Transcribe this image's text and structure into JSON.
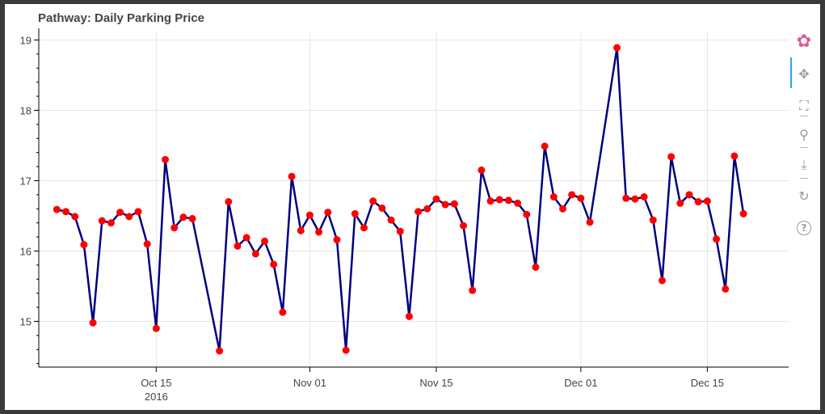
{
  "chart_data": {
    "type": "line",
    "title": "Pathway: Daily Parking Price",
    "xlabel": "",
    "ylabel": "",
    "x_axis": {
      "type": "datetime",
      "range": [
        "2016-10-02",
        "2016-12-24"
      ],
      "ticks": [
        {
          "date": "2016-10-15",
          "label": "Oct 15",
          "sublabel": "2016"
        },
        {
          "date": "2016-11-01",
          "label": "Nov 01",
          "sublabel": ""
        },
        {
          "date": "2016-11-15",
          "label": "Nov 15",
          "sublabel": ""
        },
        {
          "date": "2016-12-01",
          "label": "Dec 01",
          "sublabel": ""
        },
        {
          "date": "2016-12-15",
          "label": "Dec 15",
          "sublabel": ""
        }
      ]
    },
    "y_axis": {
      "range": [
        14.35,
        19.12
      ],
      "ticks": [
        15,
        16,
        17,
        18,
        19
      ]
    },
    "grid": true,
    "legend": "none",
    "line_color": "#000080",
    "marker_color": "#ff0000",
    "series": [
      {
        "points": [
          [
            "2016-10-04",
            16.59
          ],
          [
            "2016-10-05",
            16.56
          ],
          [
            "2016-10-06",
            16.49
          ],
          [
            "2016-10-07",
            16.09
          ],
          [
            "2016-10-08",
            14.98
          ],
          [
            "2016-10-09",
            16.43
          ],
          [
            "2016-10-10",
            16.4
          ],
          [
            "2016-10-11",
            16.55
          ],
          [
            "2016-10-12",
            16.49
          ],
          [
            "2016-10-13",
            16.56
          ],
          [
            "2016-10-14",
            16.1
          ],
          [
            "2016-10-15",
            14.9
          ],
          [
            "2016-10-16",
            17.3
          ],
          [
            "2016-10-17",
            16.33
          ],
          [
            "2016-10-18",
            16.48
          ],
          [
            "2016-10-19",
            16.46
          ],
          [
            "2016-10-22",
            14.58
          ],
          [
            "2016-10-23",
            16.7
          ],
          [
            "2016-10-24",
            16.07
          ],
          [
            "2016-10-25",
            16.19
          ],
          [
            "2016-10-26",
            15.96
          ],
          [
            "2016-10-27",
            16.14
          ],
          [
            "2016-10-28",
            15.81
          ],
          [
            "2016-10-29",
            15.13
          ],
          [
            "2016-10-30",
            17.06
          ],
          [
            "2016-10-31",
            16.29
          ],
          [
            "2016-11-01",
            16.51
          ],
          [
            "2016-11-02",
            16.27
          ],
          [
            "2016-11-03",
            16.55
          ],
          [
            "2016-11-04",
            16.16
          ],
          [
            "2016-11-05",
            14.59
          ],
          [
            "2016-11-06",
            16.53
          ],
          [
            "2016-11-07",
            16.33
          ],
          [
            "2016-11-08",
            16.71
          ],
          [
            "2016-11-09",
            16.61
          ],
          [
            "2016-11-10",
            16.44
          ],
          [
            "2016-11-11",
            16.28
          ],
          [
            "2016-11-12",
            15.07
          ],
          [
            "2016-11-13",
            16.56
          ],
          [
            "2016-11-14",
            16.6
          ],
          [
            "2016-11-15",
            16.74
          ],
          [
            "2016-11-16",
            16.66
          ],
          [
            "2016-11-17",
            16.67
          ],
          [
            "2016-11-18",
            16.36
          ],
          [
            "2016-11-19",
            15.44
          ],
          [
            "2016-11-20",
            17.15
          ],
          [
            "2016-11-21",
            16.71
          ],
          [
            "2016-11-22",
            16.73
          ],
          [
            "2016-11-23",
            16.72
          ],
          [
            "2016-11-24",
            16.68
          ],
          [
            "2016-11-25",
            16.52
          ],
          [
            "2016-11-26",
            15.77
          ],
          [
            "2016-11-27",
            17.49
          ],
          [
            "2016-11-28",
            16.77
          ],
          [
            "2016-11-29",
            16.6
          ],
          [
            "2016-11-30",
            16.8
          ],
          [
            "2016-12-01",
            16.75
          ],
          [
            "2016-12-02",
            16.41
          ],
          [
            "2016-12-05",
            18.89
          ],
          [
            "2016-12-06",
            16.75
          ],
          [
            "2016-12-07",
            16.74
          ],
          [
            "2016-12-08",
            16.77
          ],
          [
            "2016-12-09",
            16.44
          ],
          [
            "2016-12-10",
            15.58
          ],
          [
            "2016-12-11",
            17.34
          ],
          [
            "2016-12-12",
            16.68
          ],
          [
            "2016-12-13",
            16.8
          ],
          [
            "2016-12-14",
            16.7
          ],
          [
            "2016-12-15",
            16.71
          ],
          [
            "2016-12-16",
            16.17
          ],
          [
            "2016-12-17",
            15.46
          ],
          [
            "2016-12-18",
            17.35
          ],
          [
            "2016-12-19",
            16.53
          ]
        ]
      }
    ]
  },
  "toolbar": {
    "tools": [
      {
        "name": "bokeh-logo-icon",
        "glyph": "✿",
        "interactable": false
      },
      {
        "name": "pan-icon",
        "glyph": "✥",
        "interactable": true
      },
      {
        "name": "box-zoom-icon",
        "glyph": "⛶",
        "interactable": true
      },
      {
        "name": "wheel-zoom-icon",
        "glyph": "⚲",
        "interactable": true
      },
      {
        "name": "save-icon",
        "glyph": "⤓",
        "interactable": true
      },
      {
        "name": "reset-icon",
        "glyph": "↻",
        "interactable": true
      },
      {
        "name": "help-icon",
        "glyph": "?",
        "interactable": true
      }
    ]
  }
}
